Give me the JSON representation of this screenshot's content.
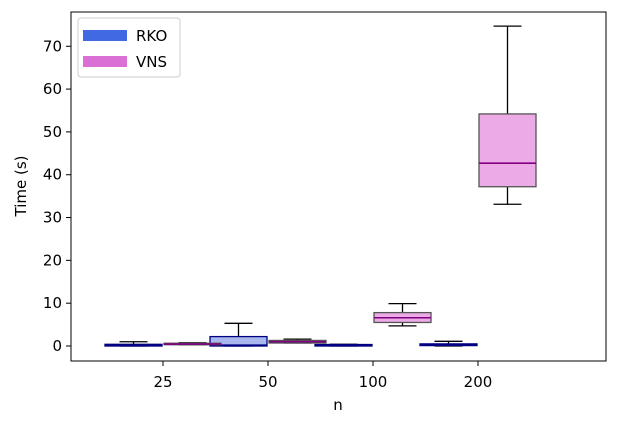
{
  "chart_data": {
    "type": "boxplot",
    "categories": [
      "25",
      "50",
      "100",
      "200"
    ],
    "xlabel": "n",
    "ylabel": "Time (s)",
    "ylim": [
      -3.5,
      78
    ],
    "yticks": [
      0,
      10,
      20,
      30,
      40,
      50,
      60,
      70
    ],
    "legend_position": "top-left",
    "series": [
      {
        "name": "RKO",
        "legend_color": "#4169e1",
        "box_color": "#a8b8ee",
        "edge_color": "#000080",
        "median_color": "#000080",
        "boxes": [
          {
            "whisker_low": 0.0,
            "q1": 0.0,
            "median": 0.15,
            "q3": 0.4,
            "whisker_high": 1.0
          },
          {
            "whisker_low": 0.0,
            "q1": 0.0,
            "median": 0.2,
            "q3": 2.2,
            "whisker_high": 5.3
          },
          {
            "whisker_low": 0.0,
            "q1": 0.0,
            "median": 0.1,
            "q3": 0.25,
            "whisker_high": 0.4
          },
          {
            "whisker_low": 0.0,
            "q1": 0.1,
            "median": 0.3,
            "q3": 0.5,
            "whisker_high": 1.1
          }
        ]
      },
      {
        "name": "VNS",
        "legend_color": "#da70d6",
        "box_color": "#ecaae6",
        "edge_color": "#555555",
        "median_color": "#800080",
        "boxes": [
          {
            "whisker_low": 0.3,
            "q1": 0.3,
            "median": 0.45,
            "q3": 0.6,
            "whisker_high": 0.75
          },
          {
            "whisker_low": 0.7,
            "q1": 0.7,
            "median": 1.0,
            "q3": 1.3,
            "whisker_high": 1.6
          },
          {
            "whisker_low": 4.7,
            "q1": 5.5,
            "median": 6.6,
            "q3": 7.8,
            "whisker_high": 9.9
          },
          {
            "whisker_low": 33.1,
            "q1": 37.2,
            "median": 42.7,
            "q3": 54.2,
            "whisker_high": 74.7
          }
        ]
      }
    ]
  }
}
